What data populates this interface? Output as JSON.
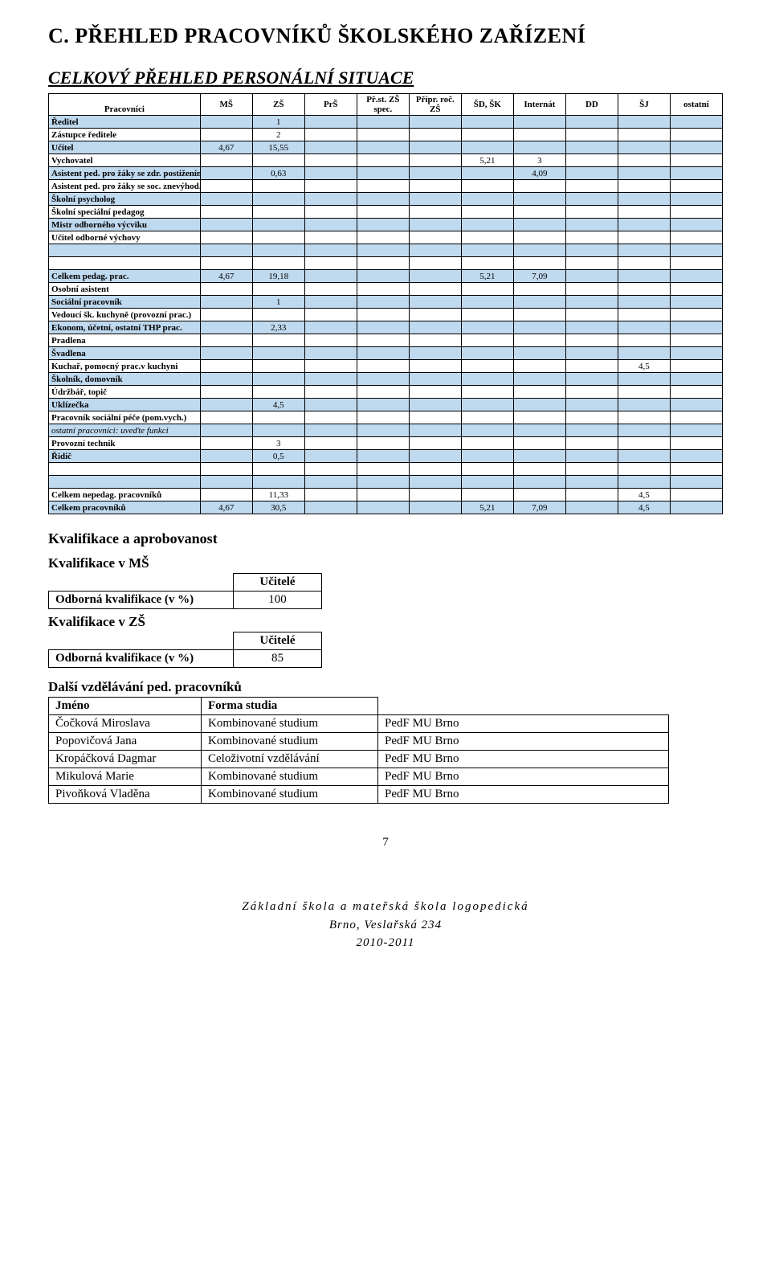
{
  "title_main": "C. PŘEHLED PRACOVNÍKŮ ŠKOLSKÉHO ZAŘÍZENÍ",
  "title_sub": "CELKOVÝ PŘEHLED PERSONÁLNÍ SITUACE",
  "colors": {
    "shaded_row": "#bfd9ef",
    "border": "#000000",
    "background": "#ffffff"
  },
  "table": {
    "corner": "Pracovníci",
    "columns": [
      "MŠ",
      "ZŠ",
      "PrŠ",
      "Př.st. ZŠ spec.",
      "Přípr. roč. ZŠ",
      "ŠD, ŠK",
      "Internát",
      "DD",
      "ŠJ",
      "ostatní"
    ],
    "block1": [
      {
        "label": "Ředitel",
        "shaded": true,
        "vals": [
          "",
          "1",
          "",
          "",
          "",
          "",
          "",
          "",
          "",
          ""
        ]
      },
      {
        "label": "Zástupce ředitele",
        "shaded": false,
        "vals": [
          "",
          "2",
          "",
          "",
          "",
          "",
          "",
          "",
          "",
          ""
        ]
      },
      {
        "label": "Učitel",
        "shaded": true,
        "vals": [
          "4,67",
          "15,55",
          "",
          "",
          "",
          "",
          "",
          "",
          "",
          ""
        ]
      },
      {
        "label": "Vychovatel",
        "shaded": false,
        "vals": [
          "",
          "",
          "",
          "",
          "",
          "5,21",
          "3",
          "",
          "",
          ""
        ]
      },
      {
        "label": "Asistent ped. pro žáky se zdr. postižením",
        "shaded": true,
        "vals": [
          "",
          "0,63",
          "",
          "",
          "",
          "",
          "4,09",
          "",
          "",
          ""
        ]
      },
      {
        "label": "Asistent ped. pro žáky se soc. znevýhod.",
        "shaded": false,
        "vals": [
          "",
          "",
          "",
          "",
          "",
          "",
          "",
          "",
          "",
          ""
        ]
      },
      {
        "label": "Školní psycholog",
        "shaded": true,
        "vals": [
          "",
          "",
          "",
          "",
          "",
          "",
          "",
          "",
          "",
          ""
        ]
      },
      {
        "label": "Školní speciální pedagog",
        "shaded": false,
        "vals": [
          "",
          "",
          "",
          "",
          "",
          "",
          "",
          "",
          "",
          ""
        ]
      },
      {
        "label": "Mistr odborného výcviku",
        "shaded": true,
        "vals": [
          "",
          "",
          "",
          "",
          "",
          "",
          "",
          "",
          "",
          ""
        ]
      },
      {
        "label": "Učitel odborné výchovy",
        "shaded": false,
        "vals": [
          "",
          "",
          "",
          "",
          "",
          "",
          "",
          "",
          "",
          ""
        ]
      },
      {
        "label": "",
        "shaded": true,
        "vals": [
          "",
          "",
          "",
          "",
          "",
          "",
          "",
          "",
          "",
          ""
        ]
      },
      {
        "label": "",
        "shaded": false,
        "vals": [
          "",
          "",
          "",
          "",
          "",
          "",
          "",
          "",
          "",
          ""
        ]
      }
    ],
    "sum1": {
      "label": "Celkem pedag. prac.",
      "vals": [
        "4,67",
        "19,18",
        "",
        "",
        "",
        "5,21",
        "7,09",
        "",
        "",
        ""
      ]
    },
    "block2": [
      {
        "label": "Osobní asistent",
        "shaded": false,
        "vals": [
          "",
          "",
          "",
          "",
          "",
          "",
          "",
          "",
          "",
          ""
        ]
      },
      {
        "label": "Sociální pracovník",
        "shaded": true,
        "vals": [
          "",
          "1",
          "",
          "",
          "",
          "",
          "",
          "",
          "",
          ""
        ]
      },
      {
        "label": "Vedoucí šk. kuchyně (provozní prac.)",
        "shaded": false,
        "vals": [
          "",
          "",
          "",
          "",
          "",
          "",
          "",
          "",
          "",
          ""
        ]
      },
      {
        "label": "Ekonom, účetní, ostatní THP prac.",
        "shaded": true,
        "vals": [
          "",
          "2,33",
          "",
          "",
          "",
          "",
          "",
          "",
          "",
          ""
        ]
      },
      {
        "label": "Pradlena",
        "shaded": false,
        "vals": [
          "",
          "",
          "",
          "",
          "",
          "",
          "",
          "",
          "",
          ""
        ]
      },
      {
        "label": "Švadlena",
        "shaded": true,
        "vals": [
          "",
          "",
          "",
          "",
          "",
          "",
          "",
          "",
          "",
          ""
        ]
      },
      {
        "label": "Kuchař, pomocný prac.v kuchyni",
        "shaded": false,
        "vals": [
          "",
          "",
          "",
          "",
          "",
          "",
          "",
          "",
          "4,5",
          ""
        ]
      },
      {
        "label": "Školník, domovník",
        "shaded": true,
        "vals": [
          "",
          "",
          "",
          "",
          "",
          "",
          "",
          "",
          "",
          ""
        ]
      },
      {
        "label": "Údržbář, topič",
        "shaded": false,
        "vals": [
          "",
          "",
          "",
          "",
          "",
          "",
          "",
          "",
          "",
          ""
        ]
      },
      {
        "label": "Uklízečka",
        "shaded": true,
        "vals": [
          "",
          "4,5",
          "",
          "",
          "",
          "",
          "",
          "",
          "",
          ""
        ]
      },
      {
        "label": "Pracovník sociální péče (pom.vych.)",
        "shaded": false,
        "vals": [
          "",
          "",
          "",
          "",
          "",
          "",
          "",
          "",
          "",
          ""
        ]
      },
      {
        "label": "ostatní pracovníci: uveďte funkci",
        "shaded": true,
        "italic": true,
        "vals": [
          "",
          "",
          "",
          "",
          "",
          "",
          "",
          "",
          "",
          ""
        ]
      },
      {
        "label": "Provozní technik",
        "shaded": false,
        "vals": [
          "",
          "3",
          "",
          "",
          "",
          "",
          "",
          "",
          "",
          ""
        ]
      },
      {
        "label": "Řidič",
        "shaded": true,
        "vals": [
          "",
          "0,5",
          "",
          "",
          "",
          "",
          "",
          "",
          "",
          ""
        ]
      },
      {
        "label": "",
        "shaded": false,
        "vals": [
          "",
          "",
          "",
          "",
          "",
          "",
          "",
          "",
          "",
          ""
        ]
      },
      {
        "label": "",
        "shaded": true,
        "vals": [
          "",
          "",
          "",
          "",
          "",
          "",
          "",
          "",
          "",
          ""
        ]
      }
    ],
    "sum2": {
      "label": "Celkem nepedag. pracovníků",
      "vals": [
        "",
        "11,33",
        "",
        "",
        "",
        "",
        "",
        "",
        "4,5",
        ""
      ]
    },
    "sum3": {
      "label": "Celkem pracovníků",
      "vals": [
        "4,67",
        "30,5",
        "",
        "",
        "",
        "5,21",
        "7,09",
        "",
        "4,5",
        ""
      ]
    }
  },
  "kv": {
    "heading": "Kvalifikace a aprobovanost",
    "ms_title": "Kvalifikace  v MŠ",
    "col_teachers": "Učitelé",
    "row_label": "Odborná kvalifikace (v %)",
    "ms_val": "100",
    "zs_title": "Kvalifikace  v ZŠ",
    "zs_val": "85"
  },
  "edu": {
    "heading": "Další vzdělávání ped. pracovníků",
    "col_name": "Jméno",
    "col_form": "Forma studia",
    "rows": [
      {
        "name": "Čočková Miroslava",
        "form": "Kombinované studium",
        "inst": "PedF MU Brno"
      },
      {
        "name": "Popovičová Jana",
        "form": "Kombinované studium",
        "inst": "PedF MU Brno"
      },
      {
        "name": "Kropáčková Dagmar",
        "form": "Celoživotní vzdělávání",
        "inst": "PedF MU Brno"
      },
      {
        "name": "Mikulová Marie",
        "form": "Kombinované studium",
        "inst": "PedF MU Brno"
      },
      {
        "name": "Pivoňková Vladěna",
        "form": "Kombinované studium",
        "inst": "PedF MU Brno"
      }
    ]
  },
  "footer": {
    "page": "7",
    "l1": "Základní škola a mateřská škola logopedická",
    "l2": "Brno, Veslařská 234",
    "l3": "2010-2011"
  }
}
